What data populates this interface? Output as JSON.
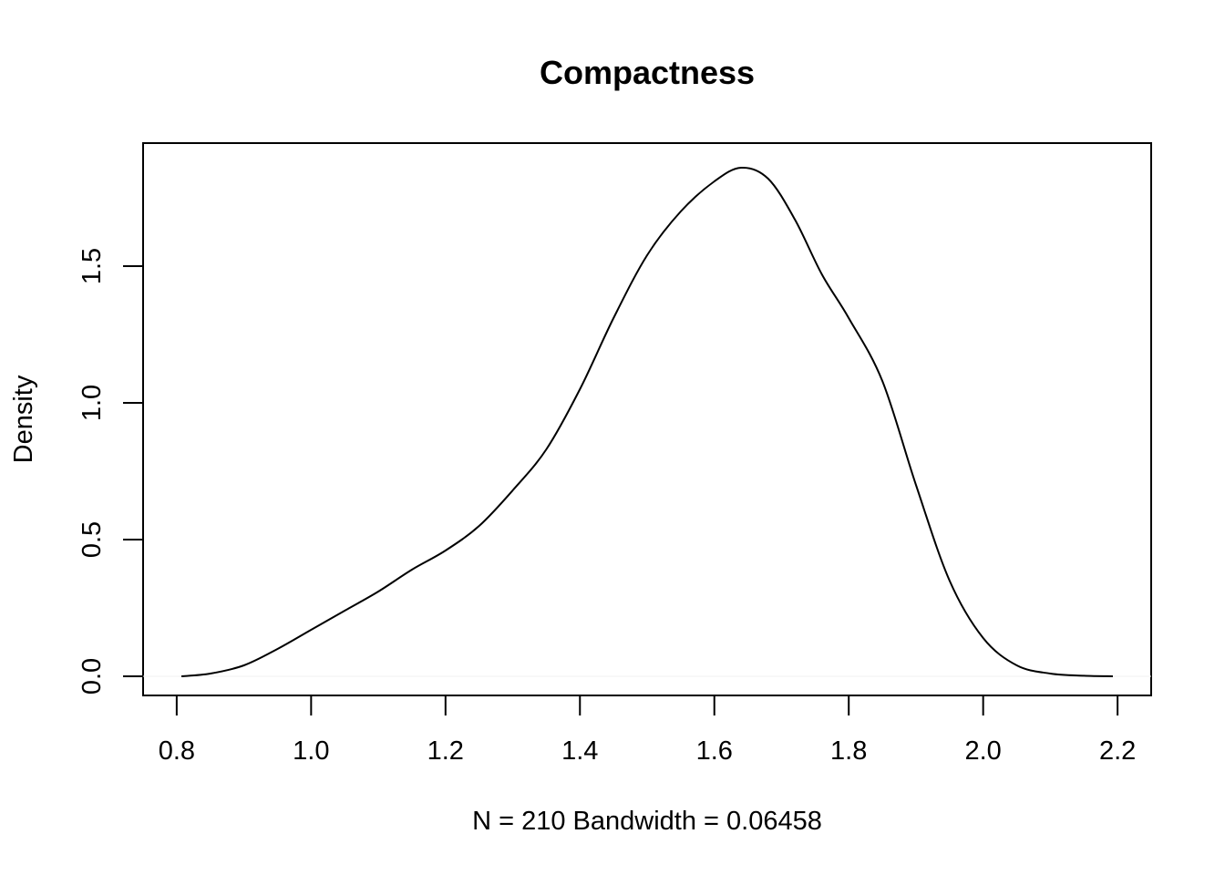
{
  "chart_data": {
    "type": "line",
    "title": "Compactness",
    "xlabel": "N = 210   Bandwidth = 0.06458",
    "ylabel": "Density",
    "xlim": [
      0.75,
      2.25
    ],
    "ylim": [
      -0.07,
      1.95
    ],
    "x_ticks": [
      0.8,
      1.0,
      1.2,
      1.4,
      1.6,
      1.8,
      2.0,
      2.2
    ],
    "x_tick_labels": [
      "0.8",
      "1.0",
      "1.2",
      "1.4",
      "1.6",
      "1.8",
      "2.0",
      "2.2"
    ],
    "y_ticks": [
      0.0,
      0.5,
      1.0,
      1.5
    ],
    "y_tick_labels": [
      "0.0",
      "0.5",
      "1.0",
      "1.5"
    ],
    "grid": false,
    "legend": "none",
    "series": [
      {
        "x": [
          0.807,
          0.85,
          0.9,
          0.95,
          1.0,
          1.05,
          1.1,
          1.15,
          1.2,
          1.25,
          1.3,
          1.35,
          1.4,
          1.45,
          1.5,
          1.55,
          1.6,
          1.64,
          1.68,
          1.72,
          1.76,
          1.8,
          1.85,
          1.9,
          1.95,
          2.0,
          2.05,
          2.1,
          2.15,
          2.193
        ],
        "y": [
          0.0,
          0.01,
          0.04,
          0.1,
          0.17,
          0.24,
          0.31,
          0.39,
          0.46,
          0.55,
          0.68,
          0.83,
          1.05,
          1.31,
          1.54,
          1.7,
          1.81,
          1.86,
          1.82,
          1.67,
          1.47,
          1.31,
          1.08,
          0.7,
          0.35,
          0.14,
          0.04,
          0.01,
          0.002,
          0.0
        ]
      }
    ]
  }
}
